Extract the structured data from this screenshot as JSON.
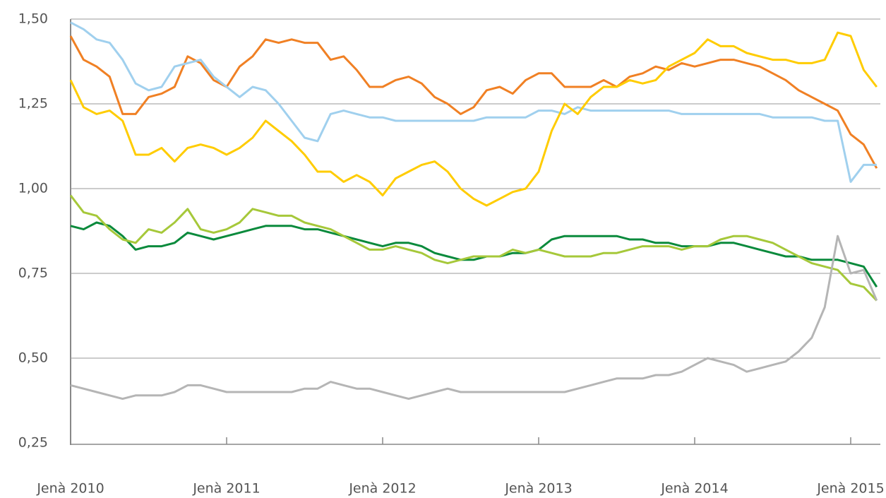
{
  "chart_data": {
    "type": "line",
    "categories": [
      "Jenà 2010",
      null,
      null,
      null,
      null,
      null,
      null,
      null,
      null,
      null,
      null,
      null,
      "Jenà 2011",
      null,
      null,
      null,
      null,
      null,
      null,
      null,
      null,
      null,
      null,
      null,
      "Jenà 2012",
      null,
      null,
      null,
      null,
      null,
      null,
      null,
      null,
      null,
      null,
      null,
      "Jenà 2013",
      null,
      null,
      null,
      null,
      null,
      null,
      null,
      null,
      null,
      null,
      null,
      "Jenà 2014",
      null,
      null,
      null,
      null,
      null,
      null,
      null,
      null,
      null,
      null,
      null,
      "Jenà 2015",
      null,
      null
    ],
    "ylim": [
      0.25,
      1.5
    ],
    "yticks": [
      {
        "value": 0.25,
        "label": "0,25"
      },
      {
        "value": 0.5,
        "label": "0,50"
      },
      {
        "value": 0.75,
        "label": "0,75"
      },
      {
        "value": 1.0,
        "label": "1,00"
      },
      {
        "value": 1.25,
        "label": "1,25"
      },
      {
        "value": 1.5,
        "label": "1,50"
      }
    ],
    "grid": true,
    "series": [
      {
        "color": "#f08024",
        "values": [
          1.45,
          1.38,
          1.36,
          1.33,
          1.22,
          1.22,
          1.27,
          1.28,
          1.3,
          1.39,
          1.37,
          1.32,
          1.3,
          1.36,
          1.39,
          1.44,
          1.43,
          1.44,
          1.43,
          1.43,
          1.38,
          1.39,
          1.35,
          1.3,
          1.3,
          1.32,
          1.33,
          1.31,
          1.27,
          1.25,
          1.22,
          1.24,
          1.29,
          1.3,
          1.28,
          1.32,
          1.34,
          1.34,
          1.3,
          1.3,
          1.3,
          1.32,
          1.3,
          1.33,
          1.34,
          1.36,
          1.35,
          1.37,
          1.36,
          1.37,
          1.38,
          1.38,
          1.37,
          1.36,
          1.34,
          1.32,
          1.29,
          1.27,
          1.25,
          1.23,
          1.16,
          1.13,
          1.06
        ]
      },
      {
        "color": "#a0d0ee",
        "values": [
          1.49,
          1.47,
          1.44,
          1.43,
          1.38,
          1.31,
          1.29,
          1.3,
          1.36,
          1.37,
          1.38,
          1.33,
          1.3,
          1.27,
          1.3,
          1.29,
          1.25,
          1.2,
          1.15,
          1.14,
          1.22,
          1.23,
          1.22,
          1.21,
          1.21,
          1.2,
          1.2,
          1.2,
          1.2,
          1.2,
          1.2,
          1.2,
          1.21,
          1.21,
          1.21,
          1.21,
          1.23,
          1.23,
          1.22,
          1.24,
          1.23,
          1.23,
          1.23,
          1.23,
          1.23,
          1.23,
          1.23,
          1.22,
          1.22,
          1.22,
          1.22,
          1.22,
          1.22,
          1.22,
          1.21,
          1.21,
          1.21,
          1.21,
          1.2,
          1.2,
          1.02,
          1.07,
          1.07
        ]
      },
      {
        "color": "#ffcc00",
        "values": [
          1.32,
          1.24,
          1.22,
          1.23,
          1.2,
          1.1,
          1.1,
          1.12,
          1.08,
          1.12,
          1.13,
          1.12,
          1.1,
          1.12,
          1.15,
          1.2,
          1.17,
          1.14,
          1.1,
          1.05,
          1.05,
          1.02,
          1.04,
          1.02,
          0.98,
          1.03,
          1.05,
          1.07,
          1.08,
          1.05,
          1.0,
          0.97,
          0.95,
          0.97,
          0.99,
          1.0,
          1.05,
          1.17,
          1.25,
          1.22,
          1.27,
          1.3,
          1.3,
          1.32,
          1.31,
          1.32,
          1.36,
          1.38,
          1.4,
          1.44,
          1.42,
          1.42,
          1.4,
          1.39,
          1.38,
          1.38,
          1.37,
          1.37,
          1.38,
          1.46,
          1.45,
          1.35,
          1.3
        ]
      },
      {
        "color": "#0a8a3c",
        "values": [
          0.89,
          0.88,
          0.9,
          0.89,
          0.86,
          0.82,
          0.83,
          0.83,
          0.84,
          0.87,
          0.86,
          0.85,
          0.86,
          0.87,
          0.88,
          0.89,
          0.89,
          0.89,
          0.88,
          0.88,
          0.87,
          0.86,
          0.85,
          0.84,
          0.83,
          0.84,
          0.84,
          0.83,
          0.81,
          0.8,
          0.79,
          0.79,
          0.8,
          0.8,
          0.81,
          0.81,
          0.82,
          0.85,
          0.86,
          0.86,
          0.86,
          0.86,
          0.86,
          0.85,
          0.85,
          0.84,
          0.84,
          0.83,
          0.83,
          0.83,
          0.84,
          0.84,
          0.83,
          0.82,
          0.81,
          0.8,
          0.8,
          0.79,
          0.79,
          0.79,
          0.78,
          0.77,
          0.71
        ]
      },
      {
        "color": "#a6c83a",
        "values": [
          0.98,
          0.93,
          0.92,
          0.88,
          0.85,
          0.84,
          0.88,
          0.87,
          0.9,
          0.94,
          0.88,
          0.87,
          0.88,
          0.9,
          0.94,
          0.93,
          0.92,
          0.92,
          0.9,
          0.89,
          0.88,
          0.86,
          0.84,
          0.82,
          0.82,
          0.83,
          0.82,
          0.81,
          0.79,
          0.78,
          0.79,
          0.8,
          0.8,
          0.8,
          0.82,
          0.81,
          0.82,
          0.81,
          0.8,
          0.8,
          0.8,
          0.81,
          0.81,
          0.82,
          0.83,
          0.83,
          0.83,
          0.82,
          0.83,
          0.83,
          0.85,
          0.86,
          0.86,
          0.85,
          0.84,
          0.82,
          0.8,
          0.78,
          0.77,
          0.76,
          0.72,
          0.71,
          0.67
        ]
      },
      {
        "color": "#b5b5b5",
        "values": [
          0.42,
          0.41,
          0.4,
          0.39,
          0.38,
          0.39,
          0.39,
          0.39,
          0.4,
          0.42,
          0.42,
          0.41,
          0.4,
          0.4,
          0.4,
          0.4,
          0.4,
          0.4,
          0.41,
          0.41,
          0.43,
          0.42,
          0.41,
          0.41,
          0.4,
          0.39,
          0.38,
          0.39,
          0.4,
          0.41,
          0.4,
          0.4,
          0.4,
          0.4,
          0.4,
          0.4,
          0.4,
          0.4,
          0.4,
          0.41,
          0.42,
          0.43,
          0.44,
          0.44,
          0.44,
          0.45,
          0.45,
          0.46,
          0.48,
          0.5,
          0.49,
          0.48,
          0.46,
          0.47,
          0.48,
          0.49,
          0.52,
          0.56,
          0.65,
          0.86,
          0.75,
          0.76,
          0.67
        ]
      }
    ]
  }
}
